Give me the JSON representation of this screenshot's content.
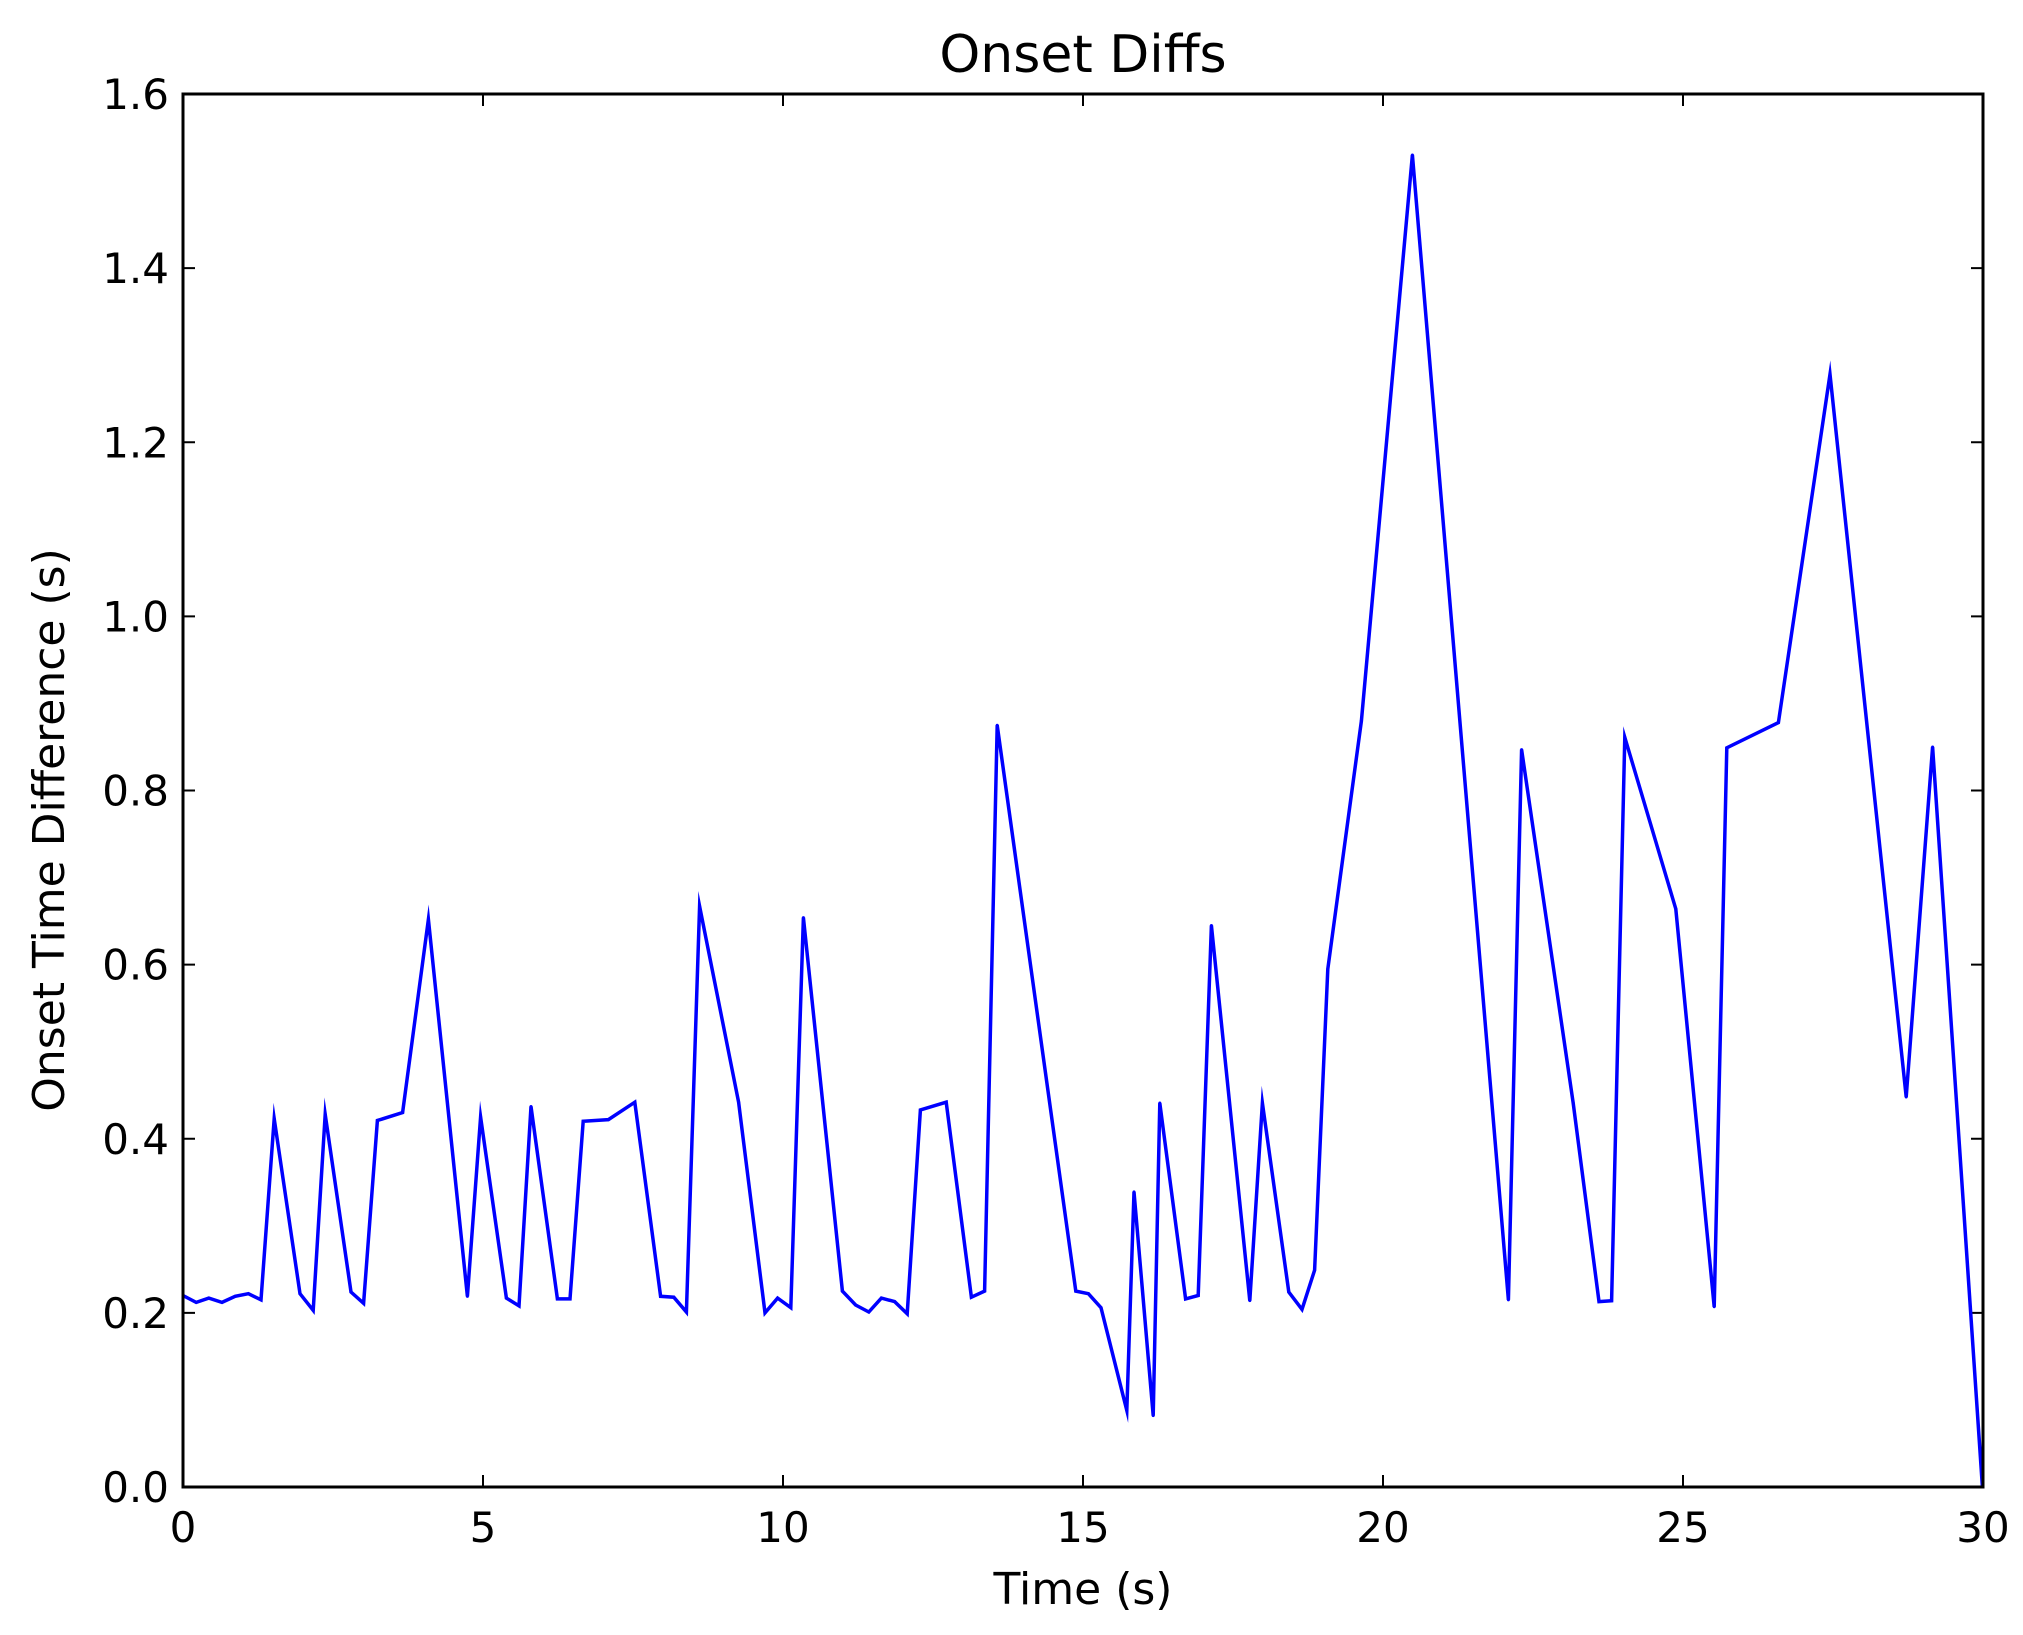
{
  "chart_data": {
    "type": "line",
    "title": "Onset Diffs",
    "xlabel": "Time (s)",
    "ylabel": "Onset Time Difference (s)",
    "xlim": [
      0,
      30
    ],
    "ylim": [
      0.0,
      1.6
    ],
    "xticks": [
      0,
      5,
      10,
      15,
      20,
      25,
      30
    ],
    "yticks": [
      0.0,
      0.2,
      0.4,
      0.6,
      0.8,
      1.0,
      1.2,
      1.4,
      1.6
    ],
    "xtick_labels": [
      "0",
      "5",
      "10",
      "15",
      "20",
      "25",
      "30"
    ],
    "ytick_labels": [
      "0.0",
      "0.2",
      "0.4",
      "0.6",
      "0.8",
      "1.0",
      "1.2",
      "1.4",
      "1.6"
    ],
    "grid": false,
    "legend": "none",
    "series": [
      {
        "color": "#0000ff",
        "x": [
          0.0,
          0.22,
          0.43,
          0.65,
          0.87,
          1.09,
          1.3,
          1.52,
          1.95,
          2.17,
          2.37,
          2.8,
          3.01,
          3.24,
          3.66,
          4.09,
          4.74,
          4.96,
          5.39,
          5.6,
          5.8,
          6.24,
          6.45,
          6.67,
          7.09,
          7.53,
          7.96,
          8.18,
          8.39,
          8.61,
          9.26,
          9.7,
          9.91,
          10.13,
          10.34,
          10.99,
          11.21,
          11.43,
          11.64,
          11.86,
          12.07,
          12.29,
          12.72,
          13.14,
          13.36,
          13.57,
          14.88,
          15.09,
          15.3,
          15.73,
          15.85,
          16.17,
          16.28,
          16.71,
          16.92,
          17.14,
          17.78,
          17.99,
          18.43,
          18.65,
          18.86,
          19.08,
          19.64,
          20.49,
          22.09,
          22.31,
          23.17,
          23.6,
          23.81,
          24.03,
          24.88,
          25.52,
          25.73,
          26.59,
          27.45,
          28.72,
          29.16,
          29.99
        ],
        "y": [
          0.22,
          0.212,
          0.217,
          0.212,
          0.219,
          0.222,
          0.215,
          0.423,
          0.222,
          0.203,
          0.428,
          0.224,
          0.211,
          0.421,
          0.43,
          0.652,
          0.219,
          0.425,
          0.217,
          0.208,
          0.437,
          0.216,
          0.216,
          0.42,
          0.422,
          0.442,
          0.219,
          0.218,
          0.201,
          0.667,
          0.442,
          0.2,
          0.217,
          0.206,
          0.654,
          0.225,
          0.209,
          0.201,
          0.217,
          0.213,
          0.199,
          0.433,
          0.442,
          0.218,
          0.225,
          0.875,
          0.225,
          0.222,
          0.206,
          0.088,
          0.339,
          0.082,
          0.441,
          0.216,
          0.22,
          0.645,
          0.214,
          0.441,
          0.224,
          0.204,
          0.249,
          0.595,
          0.88,
          1.53,
          0.215,
          0.847,
          0.441,
          0.213,
          0.214,
          0.861,
          0.664,
          0.207,
          0.849,
          0.878,
          1.278,
          0.448,
          0.85,
          0.0
        ]
      }
    ]
  }
}
